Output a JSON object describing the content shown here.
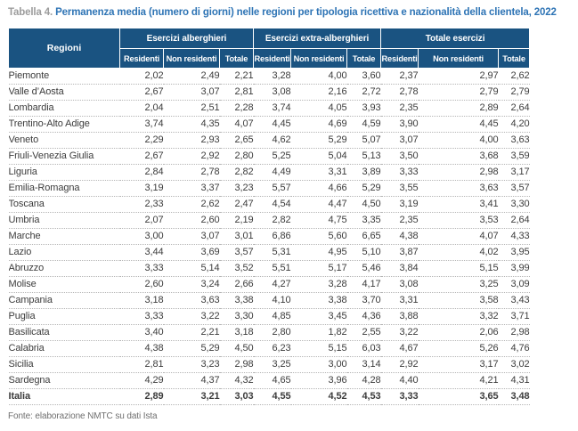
{
  "title": {
    "prefix": "Tabella 4.",
    "text": "Permanenza media (numero di giorni) nelle regioni per tipologia ricettiva e nazionalità della clientela, 2022"
  },
  "table": {
    "region_header": "Regioni",
    "groups": [
      {
        "label": "Esercizi alberghieri",
        "subcolumns": [
          "Residenti",
          "Non residenti",
          "Totale"
        ]
      },
      {
        "label": "Esercizi extra-alberghieri",
        "subcolumns": [
          "Residenti",
          "Non residenti",
          "Totale"
        ]
      },
      {
        "label": "Totale esercizi",
        "subcolumns": [
          "Residenti",
          "Non residenti",
          "Totale"
        ]
      }
    ],
    "rows": [
      {
        "region": "Piemonte",
        "values": [
          "2,02",
          "2,49",
          "2,21",
          "3,28",
          "4,00",
          "3,60",
          "2,37",
          "2,97",
          "2,62"
        ]
      },
      {
        "region": "Valle d’Aosta",
        "values": [
          "2,67",
          "3,07",
          "2,81",
          "3,08",
          "2,16",
          "2,72",
          "2,78",
          "2,79",
          "2,79"
        ]
      },
      {
        "region": "Lombardia",
        "values": [
          "2,04",
          "2,51",
          "2,28",
          "3,74",
          "4,05",
          "3,93",
          "2,35",
          "2,89",
          "2,64"
        ]
      },
      {
        "region": "Trentino-Alto Adige",
        "values": [
          "3,74",
          "4,35",
          "4,07",
          "4,45",
          "4,69",
          "4,59",
          "3,90",
          "4,45",
          "4,20"
        ]
      },
      {
        "region": "Veneto",
        "values": [
          "2,29",
          "2,93",
          "2,65",
          "4,62",
          "5,29",
          "5,07",
          "3,07",
          "4,00",
          "3,63"
        ]
      },
      {
        "region": "Friuli-Venezia Giulia",
        "values": [
          "2,67",
          "2,92",
          "2,80",
          "5,25",
          "5,04",
          "5,13",
          "3,50",
          "3,68",
          "3,59"
        ]
      },
      {
        "region": "Liguria",
        "values": [
          "2,84",
          "2,78",
          "2,82",
          "4,49",
          "3,31",
          "3,89",
          "3,33",
          "2,98",
          "3,17"
        ]
      },
      {
        "region": "Emilia-Romagna",
        "values": [
          "3,19",
          "3,37",
          "3,23",
          "5,57",
          "4,66",
          "5,29",
          "3,55",
          "3,63",
          "3,57"
        ]
      },
      {
        "region": "Toscana",
        "values": [
          "2,33",
          "2,62",
          "2,47",
          "4,54",
          "4,47",
          "4,50",
          "3,19",
          "3,41",
          "3,30"
        ]
      },
      {
        "region": "Umbria",
        "values": [
          "2,07",
          "2,60",
          "2,19",
          "2,82",
          "4,75",
          "3,35",
          "2,35",
          "3,53",
          "2,64"
        ]
      },
      {
        "region": "Marche",
        "values": [
          "3,00",
          "3,07",
          "3,01",
          "6,86",
          "5,60",
          "6,65",
          "4,38",
          "4,07",
          "4,33"
        ]
      },
      {
        "region": "Lazio",
        "values": [
          "3,44",
          "3,69",
          "3,57",
          "5,31",
          "4,95",
          "5,10",
          "3,87",
          "4,02",
          "3,95"
        ]
      },
      {
        "region": "Abruzzo",
        "values": [
          "3,33",
          "5,14",
          "3,52",
          "5,51",
          "5,17",
          "5,46",
          "3,84",
          "5,15",
          "3,99"
        ]
      },
      {
        "region": "Molise",
        "values": [
          "2,60",
          "3,24",
          "2,66",
          "4,27",
          "3,28",
          "4,17",
          "3,08",
          "3,25",
          "3,09"
        ]
      },
      {
        "region": "Campania",
        "values": [
          "3,18",
          "3,63",
          "3,38",
          "4,10",
          "3,38",
          "3,70",
          "3,31",
          "3,58",
          "3,43"
        ]
      },
      {
        "region": "Puglia",
        "values": [
          "3,33",
          "3,22",
          "3,30",
          "4,85",
          "3,45",
          "4,36",
          "3,88",
          "3,32",
          "3,71"
        ]
      },
      {
        "region": "Basilicata",
        "values": [
          "3,40",
          "2,21",
          "3,18",
          "2,80",
          "1,82",
          "2,55",
          "3,22",
          "2,06",
          "2,98"
        ]
      },
      {
        "region": "Calabria",
        "values": [
          "4,38",
          "5,29",
          "4,50",
          "6,23",
          "5,15",
          "6,03",
          "4,67",
          "5,26",
          "4,76"
        ]
      },
      {
        "region": "Sicilia",
        "values": [
          "2,81",
          "3,23",
          "2,98",
          "3,25",
          "3,00",
          "3,14",
          "2,92",
          "3,17",
          "3,02"
        ]
      },
      {
        "region": "Sardegna",
        "values": [
          "4,29",
          "4,37",
          "4,32",
          "4,65",
          "3,96",
          "4,28",
          "4,40",
          "4,21",
          "4,31"
        ]
      },
      {
        "region": "Italia",
        "values": [
          "2,89",
          "3,21",
          "3,03",
          "4,55",
          "4,52",
          "4,53",
          "3,33",
          "3,65",
          "3,48"
        ],
        "bold": true
      }
    ]
  },
  "footer": {
    "text": "Fonte: elaborazione NMTC su dati Ista"
  },
  "colors": {
    "header_background": "#1a5381",
    "header_text": "#ffffff",
    "title_blue": "#2e74b5",
    "title_label_gray": "#9c9c9c",
    "body_text": "#3c3c3c",
    "total_row_text": "#1f1f1f",
    "row_divider": "#b5b5b5",
    "source_text": "#6f6f6f"
  }
}
